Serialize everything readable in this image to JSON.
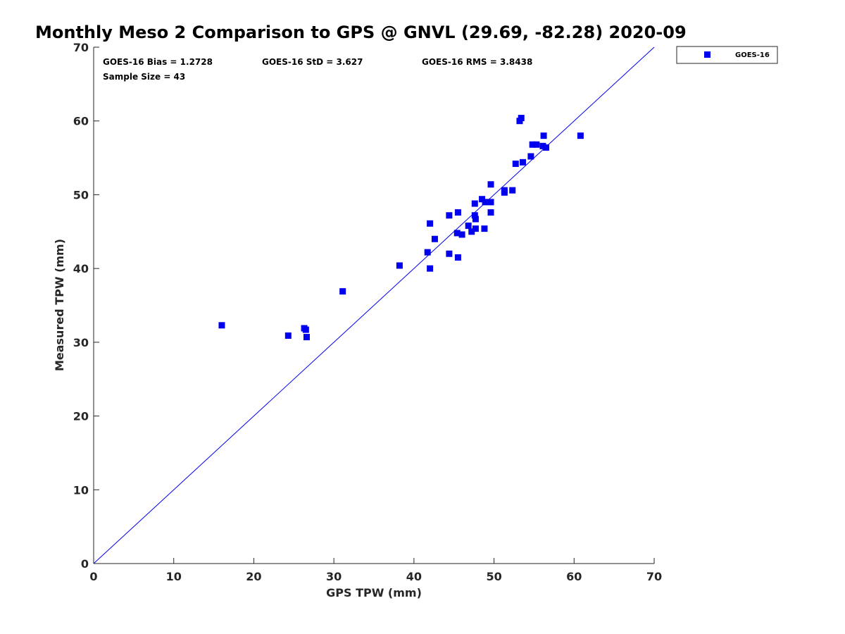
{
  "chart_data": {
    "type": "scatter",
    "title": "Monthly Meso 2 Comparison to GPS @ GNVL (29.69, -82.28) 2020-09",
    "xlabel": "GPS TPW (mm)",
    "ylabel": "Measured TPW (mm)",
    "xlim": [
      0,
      70
    ],
    "ylim": [
      0,
      70
    ],
    "xticks": [
      "0",
      "10",
      "20",
      "30",
      "40",
      "50",
      "60",
      "70"
    ],
    "yticks": [
      "0",
      "10",
      "20",
      "30",
      "40",
      "50",
      "60",
      "70"
    ],
    "grid": false,
    "legend_position": "outside-top-right",
    "reference_line": "y = x",
    "stats": {
      "bias": "GOES-16 Bias = 1.2728",
      "std": "GOES-16 StD = 3.627",
      "rms": "GOES-16 RMS = 3.8438",
      "sample_size": "Sample Size = 43"
    },
    "series": [
      {
        "name": "GOES-16",
        "color": "#0000ee",
        "marker": "square",
        "points": [
          [
            16.0,
            32.3
          ],
          [
            24.3,
            30.9
          ],
          [
            26.3,
            31.9
          ],
          [
            26.5,
            31.7
          ],
          [
            26.6,
            30.7
          ],
          [
            31.1,
            36.9
          ],
          [
            38.2,
            40.4
          ],
          [
            41.7,
            42.2
          ],
          [
            42.0,
            46.1
          ],
          [
            42.0,
            40.0
          ],
          [
            42.6,
            44.0
          ],
          [
            44.4,
            47.2
          ],
          [
            44.4,
            42.0
          ],
          [
            45.4,
            44.8
          ],
          [
            45.5,
            47.6
          ],
          [
            45.5,
            41.5
          ],
          [
            46.0,
            44.6
          ],
          [
            46.8,
            45.8
          ],
          [
            47.2,
            45.0
          ],
          [
            47.6,
            47.2
          ],
          [
            47.6,
            48.8
          ],
          [
            47.7,
            45.4
          ],
          [
            47.7,
            46.7
          ],
          [
            48.5,
            49.4
          ],
          [
            48.8,
            45.4
          ],
          [
            48.9,
            49.0
          ],
          [
            49.6,
            51.4
          ],
          [
            49.6,
            49.0
          ],
          [
            49.6,
            47.6
          ],
          [
            51.3,
            50.3
          ],
          [
            51.3,
            50.6
          ],
          [
            52.3,
            50.6
          ],
          [
            52.7,
            54.2
          ],
          [
            53.2,
            60.0
          ],
          [
            53.4,
            60.4
          ],
          [
            53.6,
            54.4
          ],
          [
            54.6,
            55.2
          ],
          [
            54.8,
            56.8
          ],
          [
            55.3,
            56.8
          ],
          [
            56.1,
            56.6
          ],
          [
            56.2,
            58.0
          ],
          [
            56.5,
            56.4
          ],
          [
            60.8,
            58.0
          ]
        ]
      }
    ]
  }
}
